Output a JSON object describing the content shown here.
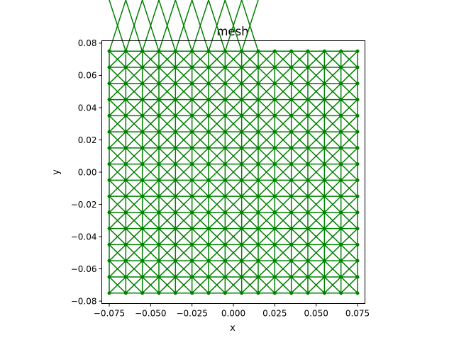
{
  "chart_data": {
    "type": "scatter",
    "title": "mesh",
    "xlabel": "x",
    "ylabel": "y",
    "xlim": [
      -0.0795,
      0.0795
    ],
    "ylim": [
      -0.0815,
      0.0815
    ],
    "xticks": [
      -0.075,
      -0.05,
      -0.025,
      0.0,
      0.025,
      0.05,
      0.075
    ],
    "xtick_labels": [
      "−0.075",
      "−0.050",
      "−0.025",
      "0.000",
      "0.025",
      "0.050",
      "0.075"
    ],
    "yticks": [
      -0.08,
      -0.06,
      -0.04,
      -0.02,
      0.0,
      0.02,
      0.04,
      0.06,
      0.08
    ],
    "ytick_labels": [
      "−0.08",
      "−0.06",
      "−0.04",
      "−0.02",
      "0.00",
      "0.02",
      "0.04",
      "0.06",
      "0.08"
    ],
    "grid": false,
    "mesh": {
      "nodes_x": [
        -0.075,
        -0.065,
        -0.055,
        -0.045,
        -0.035,
        -0.025,
        -0.015,
        -0.005,
        0.005,
        0.015,
        0.025,
        0.035,
        0.045,
        0.055,
        0.065,
        0.075
      ],
      "nodes_y": [
        -0.075,
        -0.065,
        -0.055,
        -0.045,
        -0.035,
        -0.025,
        -0.015,
        -0.005,
        0.005,
        0.015,
        0.025,
        0.035,
        0.045,
        0.055,
        0.065,
        0.075
      ],
      "cell_diagonals": [
        "X",
        "X",
        "X",
        "X",
        "X",
        "X",
        "X",
        "X",
        "X",
        "X",
        "X",
        "X",
        "X",
        "X",
        "X",
        "X",
        "X",
        "X",
        "X",
        "X",
        "X",
        "X",
        "X",
        "X",
        "X",
        "X",
        "X",
        "X",
        "X",
        "X",
        "X",
        "X",
        "X",
        "X",
        "X",
        "X",
        "X",
        "X",
        "X",
        "X",
        "X",
        "X",
        "X",
        "X",
        "X",
        "X",
        "X",
        "X",
        "X",
        "X",
        "X",
        "X",
        "X",
        "X",
        "X",
        "X",
        "X",
        "X",
        "X",
        "X",
        "X",
        "X",
        "X",
        "X",
        "X",
        "X",
        "X",
        "X",
        "X",
        "X",
        "X",
        "X",
        "X",
        "X",
        "X",
        "X",
        "X",
        "X",
        "X",
        "X",
        "X",
        "X",
        "X",
        "X",
        "X",
        "X",
        "X",
        "X",
        "X",
        "X",
        "X",
        "X",
        "X",
        "X",
        "X",
        "X",
        "X",
        "X",
        "X",
        "X",
        "X",
        "X",
        "X",
        "X",
        "X",
        "X",
        "X",
        "X",
        "X",
        "X",
        "X",
        "X",
        "X",
        "X",
        "X",
        "X",
        "X",
        "X",
        "X",
        "X",
        "X",
        "X",
        "X",
        "X",
        "X",
        "X",
        "X",
        "X",
        "X",
        "X",
        "X",
        "X",
        "X",
        "X",
        "X",
        "X",
        "X",
        "X",
        "X",
        "X",
        "X",
        "X",
        "X",
        "X",
        "X",
        "X",
        "X",
        "X",
        "X",
        "X",
        "X",
        "X",
        "X",
        "X",
        "X",
        "X",
        "X",
        "X",
        "X",
        "X",
        "X",
        "X",
        "X",
        "X",
        "X",
        "X",
        "X",
        "X",
        "X",
        "X",
        "X",
        "X",
        "X",
        "X",
        "X",
        "X",
        "X",
        "X",
        "X",
        "X",
        "X",
        "X",
        "X",
        "X",
        "X",
        "X",
        "X",
        "X",
        "X",
        "X",
        "X",
        "X",
        "X",
        "X",
        "X",
        "X",
        "X",
        "X",
        "X",
        "X",
        "X",
        "X",
        "X",
        "X",
        "X",
        "X",
        "X",
        "X",
        "X",
        "X",
        "X",
        "X",
        "X",
        "X",
        "X",
        "X",
        "X",
        "X",
        "X",
        "X",
        "X",
        "X",
        "X",
        "X",
        "X",
        "X",
        "X",
        "X",
        "X",
        "X",
        "X",
        "X",
        "X",
        "X"
      ],
      "color": "#008000"
    }
  }
}
